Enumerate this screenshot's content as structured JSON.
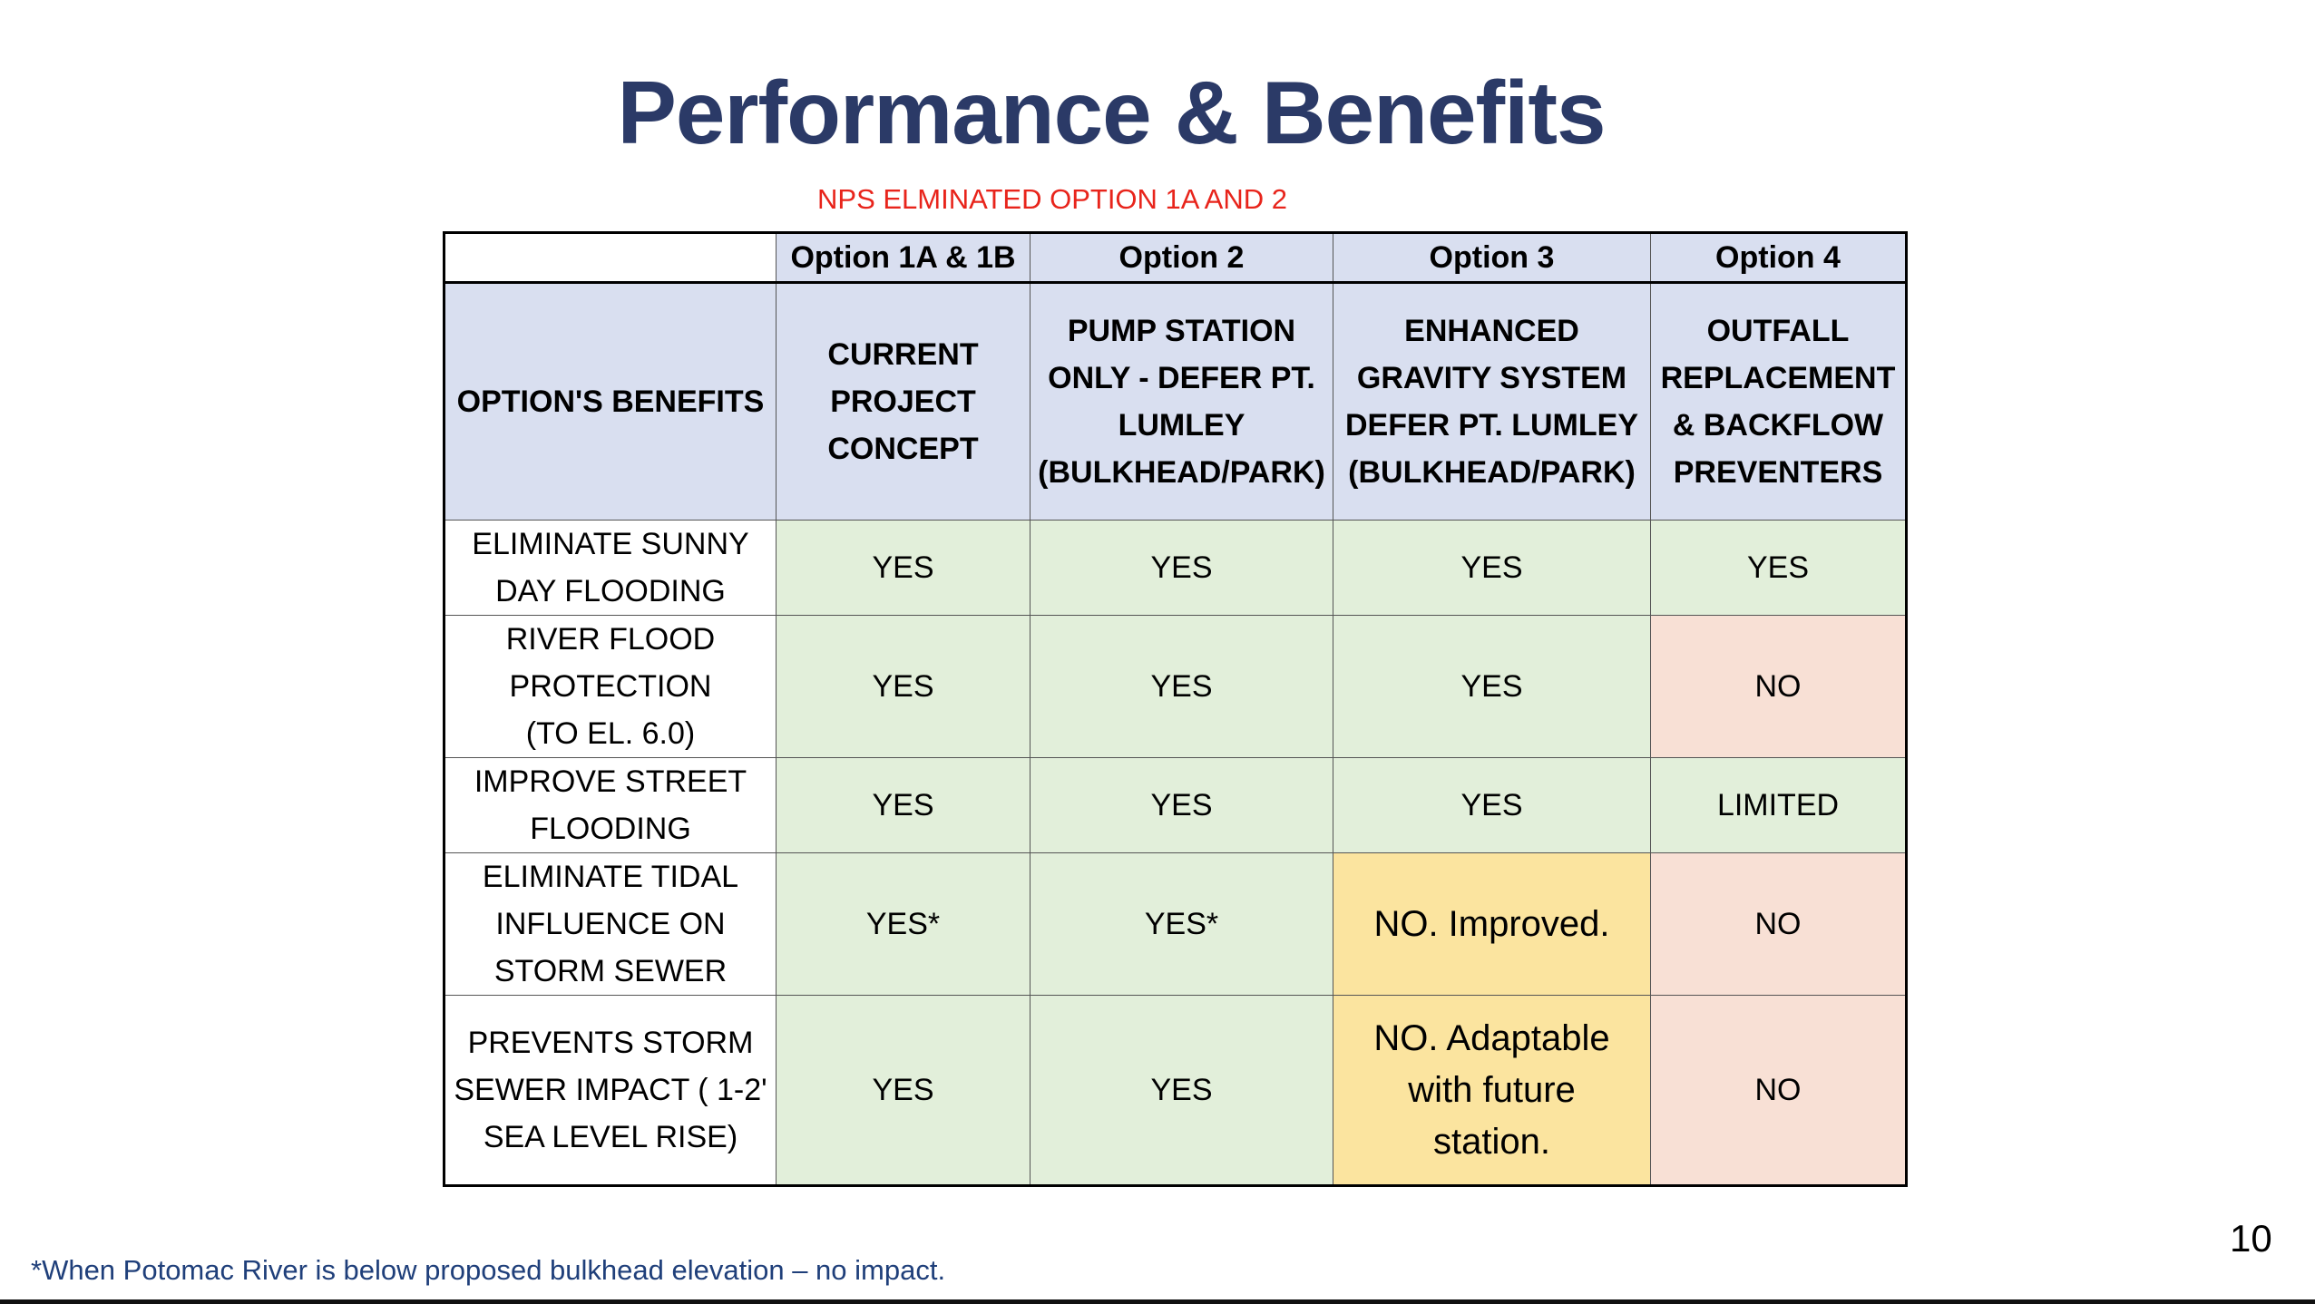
{
  "title": "Performance & Benefits",
  "note": "NPS ELMINATED OPTION 1A AND 2",
  "table": {
    "options": [
      "Option 1A & 1B",
      "Option 2",
      "Option 3",
      "Option 4"
    ],
    "benefits_header": "OPTION'S BENEFITS",
    "descriptions": [
      "CURRENT PROJECT CONCEPT",
      "PUMP STATION ONLY - DEFER PT. LUMLEY (BULKHEAD/PARK)",
      "ENHANCED GRAVITY SYSTEM DEFER PT. LUMLEY (BULKHEAD/PARK)",
      "OUTFALL REPLACEMENT & BACKFLOW PREVENTERS"
    ],
    "rows": [
      {
        "label": "ELIMINATE SUNNY DAY FLOODING",
        "values": [
          "YES",
          "YES",
          "YES",
          "YES"
        ]
      },
      {
        "label": "RIVER FLOOD PROTECTION (TO EL. 6.0)",
        "values": [
          "YES",
          "YES",
          "YES",
          "NO"
        ]
      },
      {
        "label": "IMPROVE STREET FLOODING",
        "values": [
          "YES",
          "YES",
          "YES",
          "LIMITED"
        ]
      },
      {
        "label": "ELIMINATE TIDAL INFLUENCE ON STORM SEWER",
        "values": [
          "YES*",
          "YES*",
          "NO. Improved.",
          "NO"
        ]
      },
      {
        "label": "PREVENTS STORM SEWER IMPACT ( 1-2' SEA LEVEL RISE)",
        "values": [
          "YES",
          "YES",
          "NO. Adaptable with future station.",
          "NO"
        ]
      }
    ]
  },
  "footnote": "*When Potomac River is below proposed bulkhead elevation – no impact.",
  "page_number": "10",
  "colors": {
    "title": "#2b3a67",
    "note": "#e8241b",
    "header": "#d9dff0",
    "yes": "#e2efda",
    "no": "#f8e0d5",
    "partial": "#fbe49f"
  }
}
